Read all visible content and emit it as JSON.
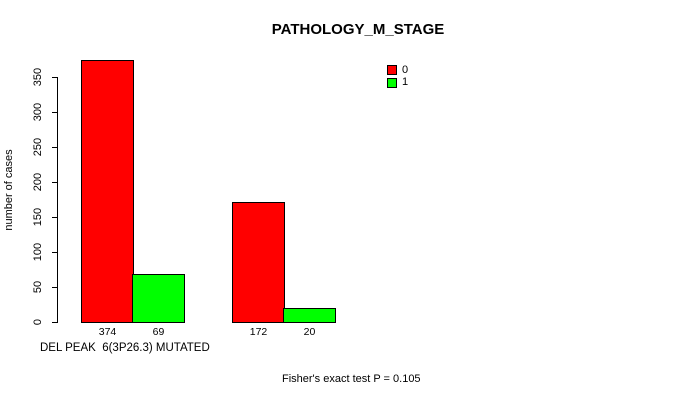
{
  "chart_data": {
    "type": "bar",
    "title": "PATHOLOGY_M_STAGE",
    "ylabel": "number of cases",
    "xlabel": "DEL PEAK  6(3P26.3) MUTATED",
    "annotation": "Fisher's exact test P = 0.105",
    "yticks": [
      0,
      50,
      100,
      150,
      200,
      250,
      300,
      350
    ],
    "ylim": [
      0,
      380
    ],
    "grid": false,
    "legend_position": "top-right",
    "categories": [
      "",
      ""
    ],
    "series": [
      {
        "name": "0",
        "color": "#FF0000",
        "values": [
          374,
          172
        ]
      },
      {
        "name": "1",
        "color": "#00FF00",
        "values": [
          69,
          20
        ]
      }
    ],
    "bar_value_labels": [
      "374",
      "69",
      "172",
      "20"
    ]
  },
  "colors": {
    "series_0": "#FF0000",
    "series_1": "#00FF00",
    "axis": "#000000",
    "background": "#FFFFFF"
  }
}
